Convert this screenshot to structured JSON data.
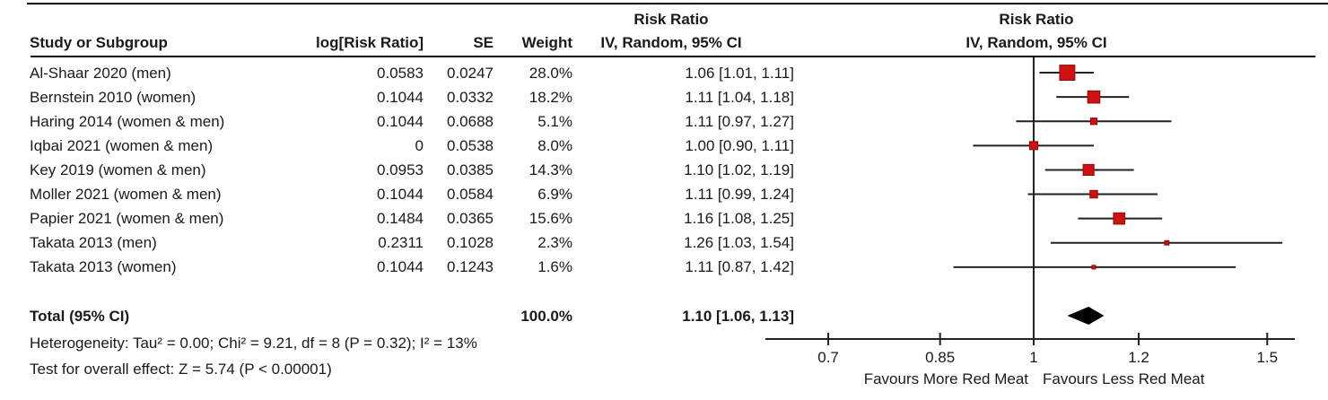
{
  "header": {
    "study_col": "Study or Subgroup",
    "logrr_col": "log[Risk Ratio]",
    "se_col": "SE",
    "weight_col": "Weight",
    "ci_col_line1": "Risk Ratio",
    "ci_col_line2": "IV, Random, 95% CI",
    "plot_col_line1": "Risk Ratio",
    "plot_col_line2": "IV, Random, 95% CI"
  },
  "footnotes": {
    "heterogeneity": "Heterogeneity: Tau² = 0.00; Chi² = 9.21, df = 8 (P = 0.32); I² = 13%",
    "overall_effect": "Test for overall effect: Z = 5.74 (P < 0.00001)"
  },
  "chart_data": {
    "type": "forest",
    "scale": "log",
    "effect_measure": "Risk Ratio",
    "model": "IV, Random, 95% CI",
    "null_value": 1,
    "x_ticks": [
      0.7,
      0.85,
      1,
      1.2,
      1.5
    ],
    "x_tick_labels": [
      "0.7",
      "0.85",
      "1",
      "1.2",
      "1.5"
    ],
    "xlim": [
      0.63,
      1.57
    ],
    "favours_left": "Favours More Red Meat",
    "favours_right": "Favours Less Red Meat",
    "studies": [
      {
        "label": "Al-Shaar 2020 (men)",
        "log_rr": "0.0583",
        "se": "0.0247",
        "weight": "28.0%",
        "ci_text": "1.06 [1.01, 1.11]",
        "rr": 1.06,
        "lo": 1.01,
        "hi": 1.11,
        "weight_pct": 28.0
      },
      {
        "label": "Bernstein 2010 (women)",
        "log_rr": "0.1044",
        "se": "0.0332",
        "weight": "18.2%",
        "ci_text": "1.11 [1.04, 1.18]",
        "rr": 1.11,
        "lo": 1.04,
        "hi": 1.18,
        "weight_pct": 18.2
      },
      {
        "label": "Haring 2014 (women & men)",
        "log_rr": "0.1044",
        "se": "0.0688",
        "weight": "5.1%",
        "ci_text": "1.11 [0.97, 1.27]",
        "rr": 1.11,
        "lo": 0.97,
        "hi": 1.27,
        "weight_pct": 5.1
      },
      {
        "label": "Iqbai 2021 (women & men)",
        "log_rr": "0",
        "se": "0.0538",
        "weight": "8.0%",
        "ci_text": "1.00 [0.90, 1.11]",
        "rr": 1.0,
        "lo": 0.9,
        "hi": 1.11,
        "weight_pct": 8.0
      },
      {
        "label": "Key 2019 (women & men)",
        "log_rr": "0.0953",
        "se": "0.0385",
        "weight": "14.3%",
        "ci_text": "1.10 [1.02, 1.19]",
        "rr": 1.1,
        "lo": 1.02,
        "hi": 1.19,
        "weight_pct": 14.3
      },
      {
        "label": "Moller 2021 (women & men)",
        "log_rr": "0.1044",
        "se": "0.0584",
        "weight": "6.9%",
        "ci_text": "1.11 [0.99, 1.24]",
        "rr": 1.11,
        "lo": 0.99,
        "hi": 1.24,
        "weight_pct": 6.9
      },
      {
        "label": "Papier 2021 (women & men)",
        "log_rr": "0.1484",
        "se": "0.0365",
        "weight": "15.6%",
        "ci_text": "1.16 [1.08, 1.25]",
        "rr": 1.16,
        "lo": 1.08,
        "hi": 1.25,
        "weight_pct": 15.6
      },
      {
        "label": "Takata 2013 (men)",
        "log_rr": "0.2311",
        "se": "0.1028",
        "weight": "2.3%",
        "ci_text": "1.26 [1.03, 1.54]",
        "rr": 1.26,
        "lo": 1.03,
        "hi": 1.54,
        "weight_pct": 2.3
      },
      {
        "label": "Takata 2013 (women)",
        "log_rr": "0.1044",
        "se": "0.1243",
        "weight": "1.6%",
        "ci_text": "1.11 [0.87, 1.42]",
        "rr": 1.11,
        "lo": 0.87,
        "hi": 1.42,
        "weight_pct": 1.6
      }
    ],
    "total": {
      "label": "Total (95% CI)",
      "weight": "100.0%",
      "ci_text": "1.10 [1.06, 1.13]",
      "rr": 1.1,
      "lo": 1.06,
      "hi": 1.13
    }
  },
  "colors": {
    "marker_fill": "#CE1212",
    "marker_border": "#8B0D0D",
    "line": "#222222",
    "diamond": "#000000",
    "text": "#1a1a1a"
  }
}
